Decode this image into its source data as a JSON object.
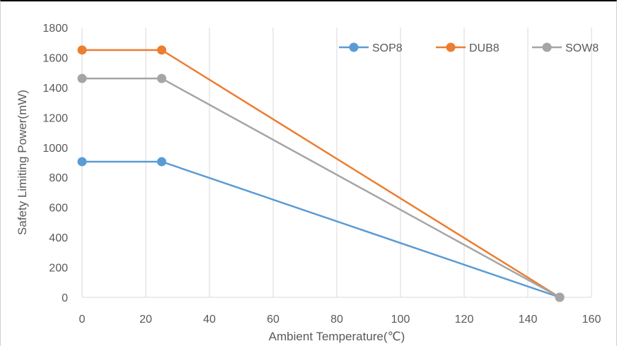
{
  "chart_data": {
    "type": "line",
    "title": "",
    "xlabel": "Ambient Temperature(℃)",
    "ylabel": "Safety Limiting Power(mW)",
    "xlim": [
      0,
      160
    ],
    "ylim": [
      0,
      1800
    ],
    "xticks": [
      0,
      20,
      40,
      60,
      80,
      100,
      120,
      140,
      160
    ],
    "yticks": [
      0,
      200,
      400,
      600,
      800,
      1000,
      1200,
      1400,
      1600,
      1800
    ],
    "grid": "vertical",
    "legend_position": "top-right",
    "series": [
      {
        "name": "SOP8",
        "color": "#5b9bd5",
        "x": [
          0,
          25,
          150
        ],
        "y": [
          905,
          905,
          0
        ]
      },
      {
        "name": "DUB8",
        "color": "#ed7d31",
        "x": [
          0,
          25,
          150
        ],
        "y": [
          1650,
          1650,
          0
        ]
      },
      {
        "name": "SOW8",
        "color": "#a5a5a5",
        "x": [
          0,
          25,
          150
        ],
        "y": [
          1460,
          1460,
          0
        ]
      }
    ]
  }
}
